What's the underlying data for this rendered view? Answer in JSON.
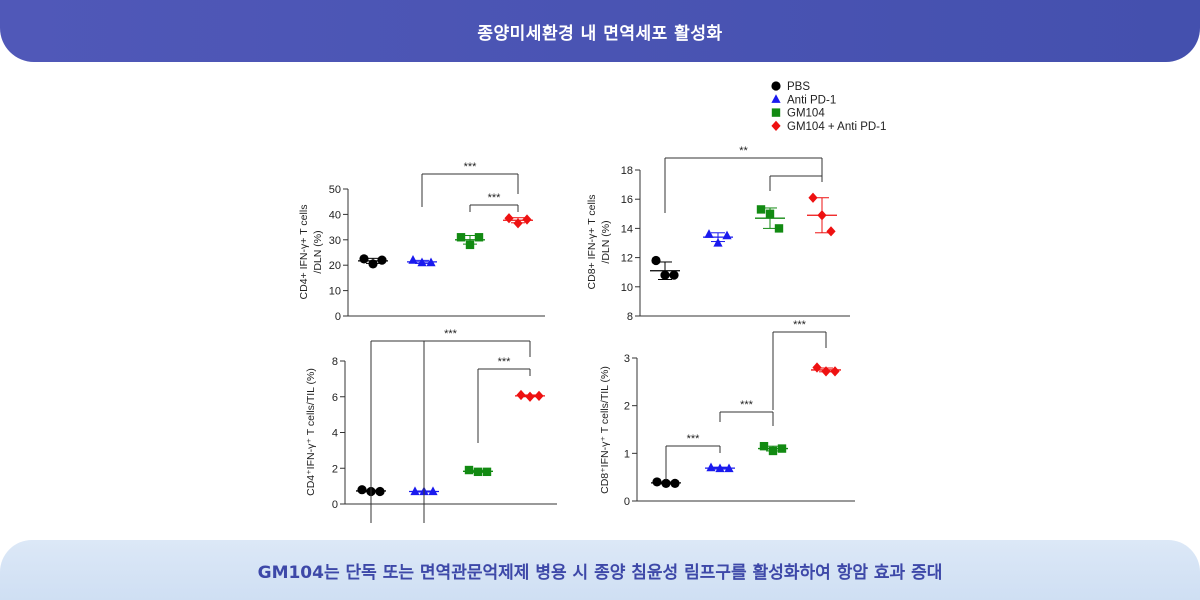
{
  "header": {
    "title": "종양미세환경 내 면역세포 활성화"
  },
  "footer": {
    "text": "GM104는 단독 또는 면역관문억제제 병용 시 종양 침윤성 림프구를 활성화하여 항암 효과 증대"
  },
  "legend": [
    {
      "label": "PBS",
      "color": "#000000",
      "marker": "circle"
    },
    {
      "label": "Anti PD-1",
      "color": "#1a1aee",
      "marker": "triangle"
    },
    {
      "label": "GM104",
      "color": "#128a12",
      "marker": "square"
    },
    {
      "label": "GM104 + Anti PD-1",
      "color": "#ee1111",
      "marker": "diamond"
    }
  ],
  "chart_data": [
    {
      "type": "scatter",
      "ylabel_lines": [
        "CD4+ IFN-γ+ T cells",
        "/DLN (%)"
      ],
      "ylim": [
        0,
        50
      ],
      "yticks": [
        0,
        10,
        20,
        30,
        40,
        50
      ],
      "groups": [
        "PBS",
        "Anti PD-1",
        "GM104",
        "GM104 + Anti PD-1"
      ],
      "series": [
        {
          "name": "PBS",
          "values": [
            22.5,
            20.5,
            22.0
          ],
          "mean": 21.7,
          "sd": 1.0
        },
        {
          "name": "Anti PD-1",
          "values": [
            22.0,
            21.0,
            21.0
          ],
          "mean": 21.3,
          "sd": 0.6
        },
        {
          "name": "GM104",
          "values": [
            31.0,
            28.0,
            31.0
          ],
          "mean": 30.0,
          "sd": 1.7
        },
        {
          "name": "GM104 + Anti PD-1",
          "values": [
            38.5,
            36.5,
            38.0
          ],
          "mean": 37.7,
          "sd": 1.0
        }
      ],
      "significance": [
        {
          "from": 1,
          "to": 3,
          "label": "***"
        },
        {
          "from": 2,
          "to": 3,
          "label": "***"
        }
      ]
    },
    {
      "type": "scatter",
      "ylabel_lines": [
        "CD8+ IFN-γ+ T cells",
        "/DLN (%)"
      ],
      "ylim": [
        8,
        18
      ],
      "yticks": [
        8,
        10,
        12,
        14,
        16,
        18
      ],
      "groups": [
        "PBS",
        "Anti PD-1",
        "GM104",
        "GM104 + Anti PD-1"
      ],
      "series": [
        {
          "name": "PBS",
          "values": [
            11.8,
            10.8,
            10.8
          ],
          "mean": 11.1,
          "sd": 0.6
        },
        {
          "name": "Anti PD-1",
          "values": [
            13.6,
            13.0,
            13.5
          ],
          "mean": 13.4,
          "sd": 0.3
        },
        {
          "name": "GM104",
          "values": [
            15.3,
            15.0,
            14.0
          ],
          "mean": 14.7,
          "sd": 0.7
        },
        {
          "name": "GM104 + Anti PD-1",
          "values": [
            16.1,
            14.9,
            13.8
          ],
          "mean": 14.9,
          "sd": 1.2
        }
      ],
      "significance": [
        {
          "from": 0,
          "to": 3,
          "label": "**"
        },
        {
          "from": 2,
          "to": 3,
          "label": ""
        }
      ]
    },
    {
      "type": "scatter",
      "ylabel": "CD4⁺IFN-γ⁺ T cells/TIL (%)",
      "ylim": [
        0,
        8
      ],
      "yticks": [
        0,
        2,
        4,
        6,
        8
      ],
      "groups": [
        "PBS",
        "Anti PD-1",
        "GM104",
        "GM104 + Anti PD-1"
      ],
      "series": [
        {
          "name": "PBS",
          "values": [
            0.8,
            0.7,
            0.7
          ],
          "mean": 0.73,
          "sd": 0.05
        },
        {
          "name": "Anti PD-1",
          "values": [
            0.7,
            0.7,
            0.7
          ],
          "mean": 0.7,
          "sd": 0.03
        },
        {
          "name": "GM104",
          "values": [
            1.9,
            1.8,
            1.8
          ],
          "mean": 1.83,
          "sd": 0.06
        },
        {
          "name": "GM104 + Anti PD-1",
          "values": [
            6.1,
            6.0,
            6.05
          ],
          "mean": 6.05,
          "sd": 0.05
        }
      ],
      "significance": [
        {
          "from": 0,
          "to": 3,
          "label": "***",
          "also_from": 1
        },
        {
          "from": 2,
          "to": 3,
          "label": "***"
        }
      ]
    },
    {
      "type": "scatter",
      "ylabel": "CD8⁺IFN-γ⁺ T cells/TIL (%)",
      "ylim": [
        0,
        3
      ],
      "yticks": [
        0,
        1,
        2,
        3
      ],
      "groups": [
        "PBS",
        "Anti PD-1",
        "GM104",
        "GM104 + Anti PD-1"
      ],
      "series": [
        {
          "name": "PBS",
          "values": [
            0.4,
            0.37,
            0.37
          ],
          "mean": 0.38,
          "sd": 0.02
        },
        {
          "name": "Anti PD-1",
          "values": [
            0.7,
            0.68,
            0.68
          ],
          "mean": 0.69,
          "sd": 0.02
        },
        {
          "name": "GM104",
          "values": [
            1.15,
            1.05,
            1.1
          ],
          "mean": 1.1,
          "sd": 0.05
        },
        {
          "name": "GM104 + Anti PD-1",
          "values": [
            2.8,
            2.72,
            2.72
          ],
          "mean": 2.75,
          "sd": 0.04
        }
      ],
      "significance": [
        {
          "from": 0,
          "to": 1,
          "label": "***"
        },
        {
          "from": 1,
          "to": 2,
          "label": "***"
        },
        {
          "from": 2,
          "to": 3,
          "label": "***"
        }
      ]
    }
  ]
}
